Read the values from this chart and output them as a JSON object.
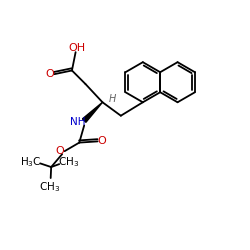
{
  "bg_color": "#ffffff",
  "bond_color": "#000000",
  "o_color": "#cc0000",
  "n_color": "#0000cc",
  "h_color": "#666666",
  "lw": 1.3,
  "figsize": [
    2.5,
    2.5
  ],
  "dpi": 100,
  "xlim": [
    0,
    10
  ],
  "ylim": [
    0,
    10
  ]
}
